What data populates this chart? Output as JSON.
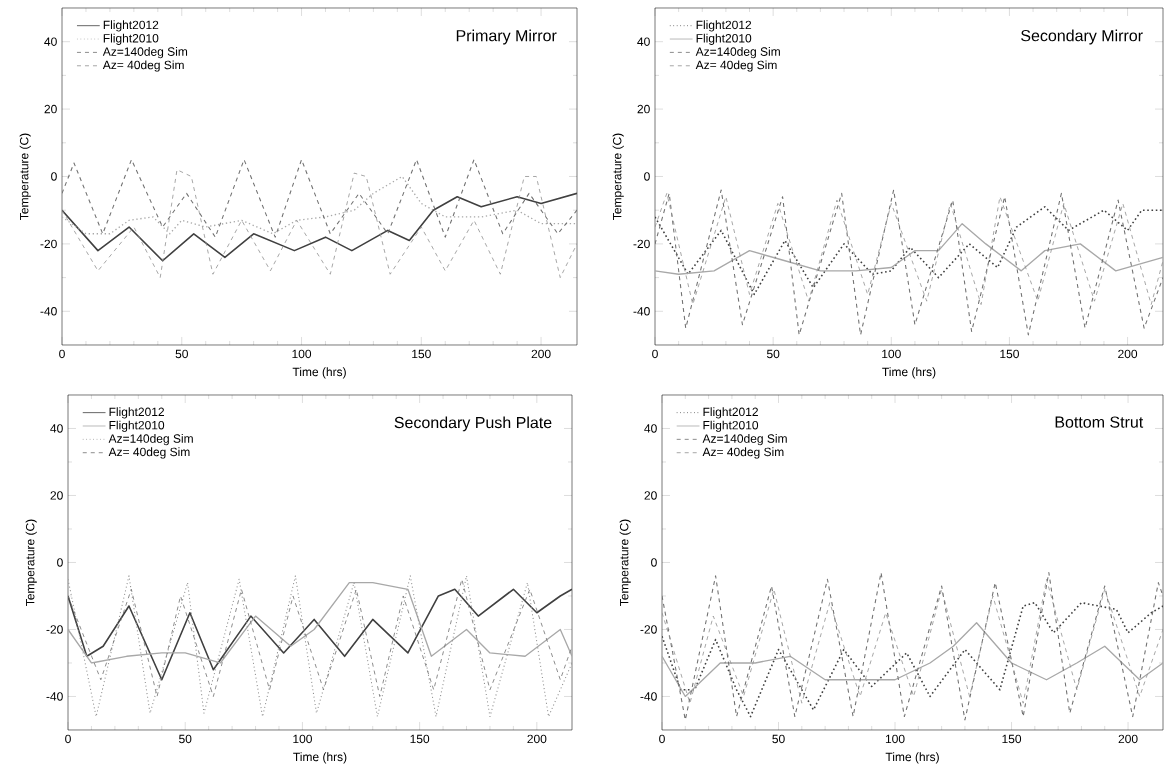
{
  "chart_data": [
    {
      "type": "line",
      "title": "Primary Mirror",
      "xlabel": "Time (hrs)",
      "ylabel": "Temperature (C)",
      "xlim": [
        0,
        215
      ],
      "ylim": [
        -50,
        50
      ],
      "xticks": [
        0,
        50,
        100,
        150,
        200
      ],
      "yticks": [
        -40,
        -20,
        0,
        20,
        40
      ],
      "legend": "top left",
      "grid": false,
      "series": [
        {
          "name": "Flight2012",
          "color": "#404040",
          "line_style": "solid",
          "x": [
            0,
            15,
            28,
            42,
            55,
            68,
            80,
            97,
            110,
            121,
            136,
            145,
            155,
            165,
            175,
            190,
            200,
            215
          ],
          "values": [
            -10,
            -22,
            -15,
            -25,
            -17,
            -24,
            -17,
            -22,
            -18,
            -22,
            -16,
            -19,
            -10,
            -6,
            -9,
            -6,
            -8,
            -5
          ]
        },
        {
          "name": "Flight2010",
          "color": "#a8a8a8",
          "line_style": "dotted",
          "x": [
            0,
            10,
            20,
            28,
            38,
            45,
            50,
            60,
            75,
            88,
            98,
            110,
            122,
            130,
            142,
            150,
            160,
            175,
            190,
            200,
            215
          ],
          "values": [
            -12,
            -17,
            -17,
            -13,
            -12,
            -17,
            -13,
            -15,
            -13,
            -17,
            -13,
            -12,
            -10,
            -5,
            0,
            -8,
            -12,
            -12,
            -10,
            -14,
            -14
          ]
        },
        {
          "name": "Az=140deg Sim",
          "color": "#707070",
          "line_style": "dashed",
          "x": [
            0,
            5,
            17,
            29,
            42,
            52,
            64,
            76,
            89,
            100,
            112,
            124,
            136,
            148,
            160,
            172,
            184,
            195,
            207,
            215
          ],
          "values": [
            -5,
            4,
            -17,
            5,
            -15,
            -5,
            -18,
            5,
            -18,
            5,
            -17,
            -5,
            -17,
            5,
            -18,
            5,
            -17,
            -5,
            -17,
            -10
          ]
        },
        {
          "name": "Az= 40deg Sim",
          "color": "#909090",
          "line_style": "dashed",
          "x": [
            0,
            15,
            30,
            41,
            48,
            54,
            63,
            75,
            87,
            98,
            112,
            122,
            127,
            137,
            150,
            160,
            172,
            183,
            193,
            198,
            208,
            215
          ],
          "values": [
            -10,
            -28,
            -15,
            -30,
            2,
            0,
            -29,
            -13,
            -28,
            -13,
            -29,
            1,
            0,
            -29,
            -15,
            -28,
            -13,
            -29,
            0,
            0,
            -30,
            -20
          ]
        }
      ]
    },
    {
      "type": "line",
      "title": "Secondary Mirror",
      "xlabel": "Time (hrs)",
      "ylabel": "Temperature (C)",
      "xlim": [
        0,
        215
      ],
      "ylim": [
        -50,
        50
      ],
      "xticks": [
        0,
        50,
        100,
        150,
        200
      ],
      "yticks": [
        -40,
        -20,
        0,
        20,
        40
      ],
      "legend": "top left",
      "grid": false,
      "series": [
        {
          "name": "Flight2012",
          "color": "#404040",
          "line_style": "dotted",
          "x": [
            0,
            14,
            28,
            42,
            55,
            67,
            80,
            92,
            100,
            108,
            120,
            133,
            145,
            153,
            165,
            175,
            190,
            200,
            206,
            215
          ],
          "values": [
            -12,
            -29,
            -16,
            -35,
            -19,
            -33,
            -20,
            -29,
            -28,
            -21,
            -30,
            -20,
            -27,
            -15,
            -9,
            -16,
            -10,
            -16,
            -10,
            -10
          ]
        },
        {
          "name": "Flight2010",
          "color": "#a8a8a8",
          "line_style": "solid",
          "x": [
            0,
            10,
            25,
            40,
            55,
            70,
            85,
            100,
            110,
            120,
            130,
            140,
            155,
            165,
            180,
            195,
            215
          ],
          "values": [
            -28,
            -29,
            -28,
            -22,
            -25,
            -28,
            -28,
            -27,
            -22,
            -22,
            -14,
            -20,
            -28,
            -22,
            -20,
            -28,
            -24
          ]
        },
        {
          "name": "Az=140deg Sim",
          "color": "#707070",
          "line_style": "dashed",
          "x": [
            0,
            6,
            13,
            28,
            37,
            54,
            61,
            79,
            87,
            101,
            110,
            126,
            134,
            148,
            158,
            172,
            182,
            196,
            207,
            215
          ],
          "values": [
            -20,
            -5,
            -45,
            -4,
            -44,
            -6,
            -47,
            -5,
            -47,
            -4,
            -44,
            -7,
            -46,
            -6,
            -47,
            -5,
            -45,
            -7,
            -45,
            -30
          ]
        },
        {
          "name": "Az= 40deg Sim",
          "color": "#909090",
          "line_style": "dashed",
          "x": [
            0,
            5,
            16,
            30,
            40,
            52,
            65,
            77,
            90,
            100,
            115,
            125,
            138,
            146,
            162,
            173,
            186,
            198,
            210,
            215
          ],
          "values": [
            -15,
            -5,
            -38,
            -6,
            -35,
            -8,
            -37,
            -7,
            -35,
            -8,
            -37,
            -8,
            -38,
            -6,
            -37,
            -8,
            -37,
            -8,
            -38,
            -25
          ]
        }
      ]
    },
    {
      "type": "line",
      "title": "Secondary Push Plate",
      "xlabel": "Time (hrs)",
      "ylabel": "Temperature (C)",
      "xlim": [
        0,
        215
      ],
      "ylim": [
        -50,
        50
      ],
      "xticks": [
        0,
        50,
        100,
        150,
        200
      ],
      "yticks": [
        -40,
        -20,
        0,
        20,
        40
      ],
      "legend": "top left",
      "grid": false,
      "series": [
        {
          "name": "Flight2012",
          "color": "#404040",
          "line_style": "solid",
          "x": [
            0,
            8,
            15,
            26,
            40,
            52,
            62,
            78,
            92,
            105,
            118,
            130,
            145,
            158,
            165,
            175,
            190,
            200,
            210,
            215
          ],
          "values": [
            -10,
            -28,
            -25,
            -13,
            -35,
            -15,
            -32,
            -16,
            -27,
            -17,
            -28,
            -17,
            -27,
            -10,
            -8,
            -16,
            -8,
            -15,
            -10,
            -8
          ]
        },
        {
          "name": "Flight2010",
          "color": "#a8a8a8",
          "line_style": "solid",
          "x": [
            0,
            10,
            25,
            40,
            50,
            65,
            80,
            95,
            105,
            120,
            130,
            145,
            155,
            170,
            180,
            195,
            210,
            215
          ],
          "values": [
            -20,
            -30,
            -28,
            -27,
            -27,
            -30,
            -16,
            -25,
            -20,
            -6,
            -6,
            -8,
            -28,
            -20,
            -27,
            -28,
            -20,
            -28
          ]
        },
        {
          "name": "Az=140deg Sim",
          "color": "#909090",
          "line_style": "dotted",
          "x": [
            0,
            12,
            26,
            35,
            51,
            58,
            73,
            83,
            97,
            106,
            122,
            132,
            146,
            157,
            170,
            180,
            196,
            205,
            215
          ],
          "values": [
            -5,
            -46,
            -4,
            -45,
            -6,
            -45,
            -5,
            -46,
            -4,
            -45,
            -6,
            -46,
            -4,
            -46,
            -4,
            -46,
            -6,
            -46,
            -30
          ]
        },
        {
          "name": "Az= 40deg Sim",
          "color": "#707070",
          "line_style": "dashed",
          "x": [
            0,
            14,
            27,
            38,
            48,
            62,
            74,
            86,
            96,
            109,
            123,
            133,
            143,
            156,
            168,
            180,
            197,
            210,
            215
          ],
          "values": [
            -10,
            -35,
            -8,
            -40,
            -10,
            -40,
            -8,
            -38,
            -10,
            -38,
            -8,
            -40,
            -10,
            -38,
            -5,
            -38,
            -8,
            -35,
            -25
          ]
        }
      ]
    },
    {
      "type": "line",
      "title": "Bottom Strut",
      "xlabel": "Time (hrs)",
      "ylabel": "Temperature (C)",
      "xlim": [
        0,
        215
      ],
      "ylim": [
        -50,
        50
      ],
      "xticks": [
        0,
        50,
        100,
        150,
        200
      ],
      "yticks": [
        -40,
        -20,
        0,
        20,
        40
      ],
      "legend": "top left",
      "grid": false,
      "series": [
        {
          "name": "Flight2012",
          "color": "#404040",
          "line_style": "dotted",
          "x": [
            0,
            8,
            14,
            23,
            32,
            38,
            50,
            65,
            78,
            90,
            105,
            115,
            130,
            145,
            155,
            160,
            168,
            180,
            195,
            200,
            210,
            215
          ],
          "values": [
            -22,
            -38,
            -38,
            -23,
            -38,
            -46,
            -26,
            -44,
            -26,
            -37,
            -27,
            -40,
            -26,
            -38,
            -13,
            -12,
            -21,
            -12,
            -14,
            -21,
            -15,
            -13
          ]
        },
        {
          "name": "Flight2010",
          "color": "#a8a8a8",
          "line_style": "solid",
          "x": [
            0,
            10,
            25,
            40,
            55,
            70,
            85,
            100,
            115,
            125,
            135,
            150,
            165,
            178,
            190,
            205,
            215
          ],
          "values": [
            -28,
            -40,
            -30,
            -30,
            -28,
            -35,
            -35,
            -35,
            -30,
            -25,
            -18,
            -30,
            -35,
            -30,
            -25,
            -35,
            -30
          ]
        },
        {
          "name": "Az=140deg Sim",
          "color": "#707070",
          "line_style": "dashed",
          "x": [
            0,
            10,
            23,
            32,
            47,
            57,
            71,
            82,
            94,
            104,
            120,
            130,
            143,
            155,
            166,
            175,
            190,
            202,
            213,
            215
          ],
          "values": [
            -10,
            -47,
            -4,
            -46,
            -7,
            -46,
            -5,
            -46,
            -3,
            -46,
            -7,
            -47,
            -6,
            -46,
            -3,
            -45,
            -7,
            -46,
            -6,
            -10
          ]
        },
        {
          "name": "Az= 40deg Sim",
          "color": "#909090",
          "line_style": "dashed",
          "x": [
            0,
            12,
            22,
            35,
            48,
            60,
            72,
            85,
            96,
            108,
            120,
            132,
            142,
            155,
            165,
            178,
            190,
            205,
            215
          ],
          "values": [
            -15,
            -42,
            -16,
            -40,
            -8,
            -42,
            -12,
            -40,
            -15,
            -40,
            -8,
            -40,
            -10,
            -42,
            -5,
            -38,
            -8,
            -40,
            -20
          ]
        }
      ]
    }
  ]
}
